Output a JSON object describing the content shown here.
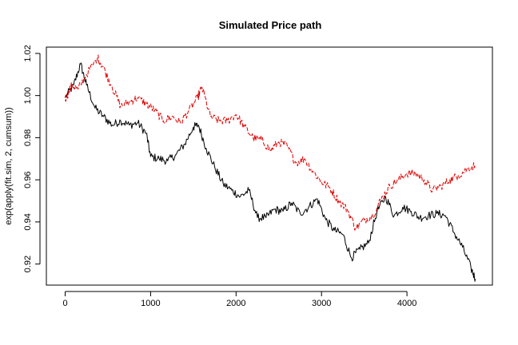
{
  "chart_data": {
    "type": "line",
    "title": "Simulated Price path",
    "xlabel": "",
    "ylabel": "exp(apply(fit.sim, 2, cumsum))",
    "xlim": [
      -220,
      5000
    ],
    "ylim": [
      0.91,
      1.023
    ],
    "x_ticks": [
      0,
      1000,
      2000,
      3000,
      4000
    ],
    "x_tick_labels": [
      "0",
      "1000",
      "2000",
      "3000",
      "4000"
    ],
    "y_ticks": [
      0.92,
      0.94,
      0.96,
      0.98,
      1.0,
      1.02
    ],
    "y_tick_labels": [
      "0.92",
      "0.94",
      "0.96",
      "0.98",
      "1.00",
      "1.02"
    ],
    "grid": false,
    "series": [
      {
        "color": "#000000",
        "style": "solid",
        "x": [
          0,
          100,
          180,
          250,
          350,
          450,
          550,
          650,
          750,
          850,
          950,
          1000,
          1100,
          1200,
          1300,
          1400,
          1500,
          1560,
          1650,
          1750,
          1850,
          1950,
          2050,
          2150,
          2250,
          2350,
          2450,
          2550,
          2650,
          2750,
          2850,
          2950,
          3050,
          3150,
          3250,
          3350,
          3450,
          3550,
          3650,
          3750,
          3850,
          3950,
          4050,
          4150,
          4250,
          4350,
          4450,
          4550,
          4650,
          4750,
          4800
        ],
        "values": [
          0.999,
          1.005,
          1.015,
          1.005,
          0.994,
          0.99,
          0.986,
          0.988,
          0.986,
          0.987,
          0.982,
          0.971,
          0.97,
          0.969,
          0.972,
          0.977,
          0.985,
          0.986,
          0.975,
          0.966,
          0.958,
          0.955,
          0.952,
          0.955,
          0.942,
          0.942,
          0.946,
          0.945,
          0.949,
          0.944,
          0.947,
          0.951,
          0.941,
          0.936,
          0.934,
          0.923,
          0.927,
          0.93,
          0.945,
          0.952,
          0.943,
          0.947,
          0.945,
          0.942,
          0.943,
          0.944,
          0.943,
          0.935,
          0.928,
          0.918,
          0.913
        ]
      },
      {
        "color": "#e00000",
        "style": "dashed",
        "x": [
          0,
          80,
          150,
          250,
          380,
          450,
          550,
          650,
          750,
          850,
          950,
          1050,
          1150,
          1250,
          1350,
          1450,
          1550,
          1600,
          1700,
          1800,
          1900,
          2000,
          2100,
          2200,
          2300,
          2400,
          2500,
          2600,
          2700,
          2800,
          2900,
          3000,
          3100,
          3200,
          3300,
          3400,
          3500,
          3600,
          3700,
          3800,
          3900,
          4000,
          4100,
          4200,
          4300,
          4400,
          4500,
          4600,
          4700,
          4800
        ],
        "values": [
          0.998,
          1.005,
          1.003,
          1.01,
          1.018,
          1.013,
          1.004,
          0.995,
          0.997,
          0.999,
          0.996,
          0.993,
          0.988,
          0.99,
          0.987,
          0.993,
          0.999,
          1.004,
          0.99,
          0.988,
          0.988,
          0.991,
          0.985,
          0.98,
          0.979,
          0.974,
          0.978,
          0.976,
          0.968,
          0.97,
          0.964,
          0.959,
          0.956,
          0.95,
          0.946,
          0.937,
          0.941,
          0.943,
          0.951,
          0.957,
          0.96,
          0.963,
          0.963,
          0.96,
          0.955,
          0.957,
          0.96,
          0.962,
          0.965,
          0.967
        ]
      }
    ]
  }
}
